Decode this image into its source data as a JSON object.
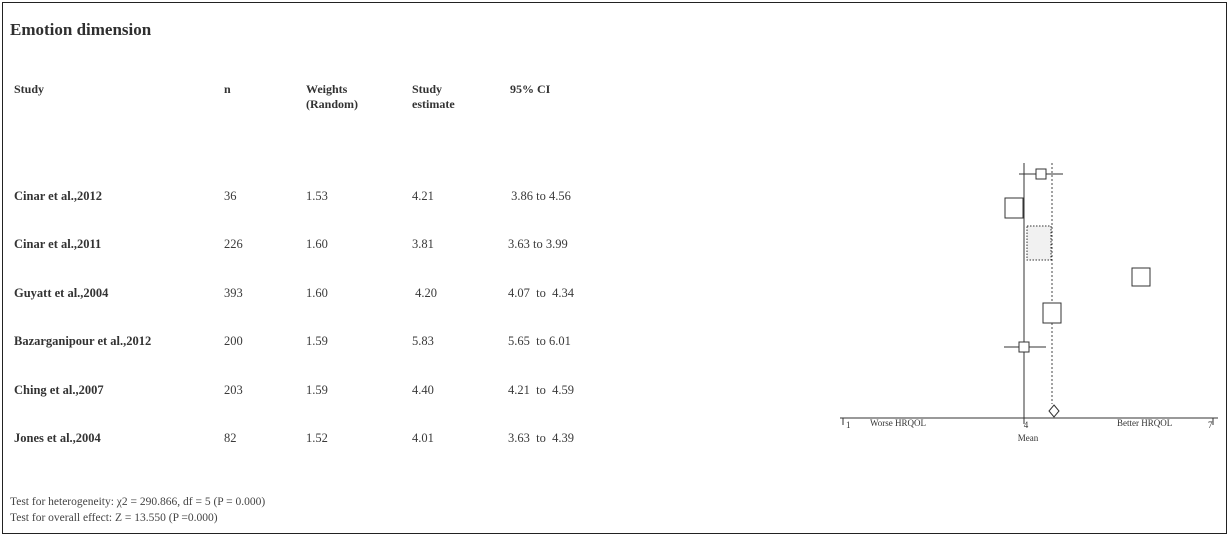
{
  "title": "Emotion dimension",
  "headers": {
    "study": "Study",
    "n": "n",
    "weights_line1": "Weights",
    "weights_line2": "(Random)",
    "estimate_line1": "Study",
    "estimate_line2": "estimate",
    "ci": "95% CI"
  },
  "rows": [
    {
      "study": "Cinar  et al.,2012",
      "n": "36",
      "weight": "1.53",
      "estimate": "4.21",
      "ci": " 3.86 to 4.56"
    },
    {
      "study": "Cinar et al.,2011",
      "n": "226",
      "weight": "1.60",
      "estimate": "3.81",
      "ci": "3.63 to 3.99"
    },
    {
      "study": "Guyatt et al.,2004",
      "n": "393",
      "weight": "1.60",
      "estimate": " 4.20",
      "ci": "4.07  to  4.34"
    },
    {
      "study": "Bazarganipour et al.,2012",
      "n": "200",
      "weight": "1.59",
      "estimate": "5.83",
      "ci": "5.65  to 6.01"
    },
    {
      "study": "Ching et al.,2007",
      "n": "203",
      "weight": "1.59",
      "estimate": "4.40",
      "ci": "4.21  to  4.59"
    },
    {
      "study": "Jones et al.,2004",
      "n": "82",
      "weight": "1.52",
      "estimate": "4.01",
      "ci": "3.63  to  4.39"
    }
  ],
  "footer": {
    "heterogeneity": "Test for heterogeneity: χ2 = 290.866, df = 5 (P = 0.000)",
    "overall": "Test for overall effect: Z = 13.550  (P =0.000)"
  },
  "axis": {
    "min_label": "1",
    "left_label": "Worse HRQOL",
    "center_value_label": "4",
    "center_label": "Mean",
    "right_label": "Better HRQOL",
    "max_label": "7"
  },
  "chart_data": {
    "type": "forest",
    "xlim": [
      1,
      7
    ],
    "reference_line": 4,
    "pooled_line": 4.4,
    "studies": [
      {
        "name": "Cinar  et al.,2012",
        "estimate": 4.21,
        "ci_low": 3.86,
        "ci_high": 4.56,
        "weight": 1.53
      },
      {
        "name": "Cinar et al.,2011",
        "estimate": 3.81,
        "ci_low": 3.63,
        "ci_high": 3.99,
        "weight": 1.6
      },
      {
        "name": "Guyatt et al.,2004",
        "estimate": 4.2,
        "ci_low": 4.07,
        "ci_high": 4.34,
        "weight": 1.6
      },
      {
        "name": "Bazarganipour et al.,2012",
        "estimate": 5.83,
        "ci_low": 5.65,
        "ci_high": 6.01,
        "weight": 1.59
      },
      {
        "name": "Ching et al.,2007",
        "estimate": 4.4,
        "ci_low": 4.21,
        "ci_high": 4.59,
        "weight": 1.59
      },
      {
        "name": "Jones et al.,2004",
        "estimate": 4.01,
        "ci_low": 3.63,
        "ci_high": 4.39,
        "weight": 1.52
      }
    ],
    "pooled": {
      "estimate": 4.4
    },
    "xlabel_left": "Worse HRQOL",
    "xlabel_right": "Better HRQOL",
    "xlabel_center": "Mean"
  }
}
